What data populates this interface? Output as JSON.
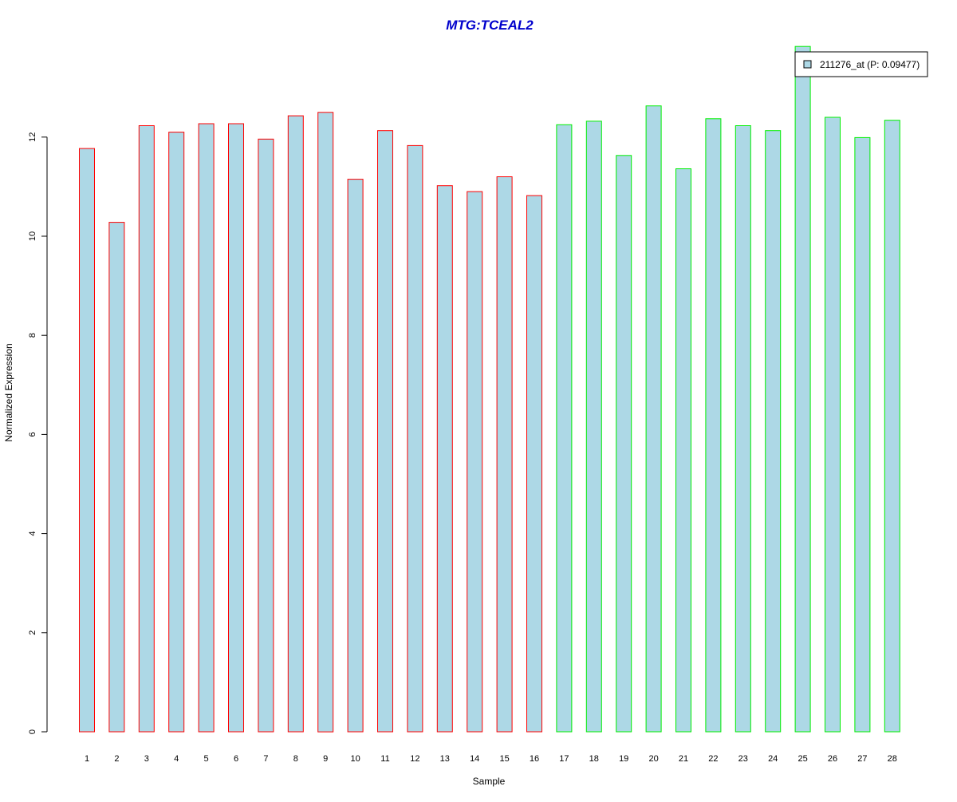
{
  "colors": {
    "title": "#0000cc",
    "bar_fill": "#add8e6",
    "group1_border": "#ff0000",
    "group2_border": "#00ee00",
    "axis": "#000000"
  },
  "chart_data": {
    "type": "bar",
    "title": "MTG:TCEAL2",
    "xlabel": "Sample",
    "ylabel": "Normalized Expression",
    "ylim": [
      0,
      13.8
    ],
    "yticks": [
      0,
      2,
      4,
      6,
      8,
      10,
      12
    ],
    "categories": [
      "1",
      "2",
      "3",
      "4",
      "5",
      "6",
      "7",
      "8",
      "9",
      "10",
      "11",
      "12",
      "13",
      "14",
      "15",
      "16",
      "17",
      "18",
      "19",
      "20",
      "21",
      "22",
      "23",
      "24",
      "25",
      "26",
      "27",
      "28"
    ],
    "series": [
      {
        "name": "211276_at (P: 0.09477)",
        "values": [
          11.77,
          10.28,
          12.23,
          12.1,
          12.27,
          12.27,
          11.96,
          12.43,
          12.5,
          11.15,
          12.13,
          11.83,
          11.02,
          10.9,
          11.2,
          10.82,
          12.25,
          12.32,
          11.63,
          12.63,
          11.36,
          12.37,
          12.23,
          12.13,
          13.83,
          12.4,
          11.99,
          12.34
        ]
      }
    ],
    "groups": [
      {
        "samples": [
          1,
          16
        ],
        "border_color": "#ff0000"
      },
      {
        "samples": [
          17,
          28
        ],
        "border_color": "#00ee00"
      }
    ],
    "grid": false,
    "legend_position": "top-right",
    "legend_entries": [
      "211276_at (P: 0.09477)"
    ]
  }
}
